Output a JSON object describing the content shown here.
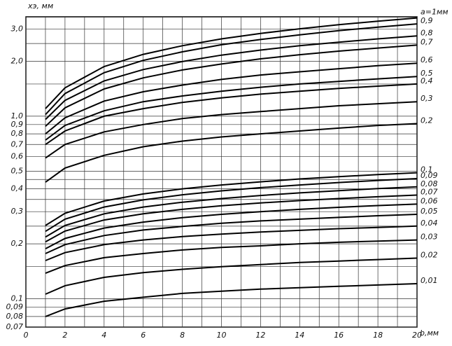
{
  "chart_data": {
    "type": "line",
    "log_y": true,
    "grid": true,
    "ylabel": "xэ, мм",
    "xlabel": "b,мм",
    "x": [
      1,
      2,
      4,
      6,
      8,
      10,
      12,
      14,
      16,
      18,
      20
    ],
    "xlim": [
      0,
      20
    ],
    "xticks": [
      0,
      2,
      4,
      6,
      8,
      10,
      12,
      14,
      16,
      18,
      20
    ],
    "xminor": [
      1,
      3,
      5,
      7,
      9,
      11,
      13,
      15,
      17,
      19
    ],
    "ylim": [
      0.07,
      3.5
    ],
    "yticks": [
      {
        "value": 3.0,
        "label": "3,0"
      },
      {
        "value": 2.0,
        "label": "2,0"
      },
      {
        "value": 1.0,
        "label": "1,0"
      },
      {
        "value": 0.9,
        "label": "0,9"
      },
      {
        "value": 0.8,
        "label": "0,8"
      },
      {
        "value": 0.7,
        "label": "0,7"
      },
      {
        "value": 0.6,
        "label": "0,6"
      },
      {
        "value": 0.5,
        "label": "0,5"
      },
      {
        "value": 0.4,
        "label": "0,4"
      },
      {
        "value": 0.3,
        "label": "0,3"
      },
      {
        "value": 0.2,
        "label": "0,2"
      },
      {
        "value": 0.1,
        "label": "0,1"
      },
      {
        "value": 0.09,
        "label": "0,09"
      },
      {
        "value": 0.08,
        "label": "0,08"
      },
      {
        "value": 0.07,
        "label": "0,07"
      }
    ],
    "yminor": [
      0.15,
      0.25,
      0.35,
      0.45,
      1.5,
      2.5
    ],
    "series": [
      {
        "name": "a=1мм",
        "color": "#000000",
        "values": [
          1.1,
          1.43,
          1.87,
          2.18,
          2.43,
          2.65,
          2.84,
          3.01,
          3.17,
          3.31,
          3.45
        ]
      },
      {
        "name": "0,9",
        "color": "#000000",
        "values": [
          1.02,
          1.33,
          1.73,
          2.02,
          2.25,
          2.46,
          2.63,
          2.79,
          2.94,
          3.07,
          3.2
        ]
      },
      {
        "name": "0,8",
        "color": "#000000",
        "values": [
          0.96,
          1.22,
          1.56,
          1.8,
          1.99,
          2.16,
          2.3,
          2.43,
          2.54,
          2.65,
          2.75
        ]
      },
      {
        "name": "0,7",
        "color": "#000000",
        "values": [
          0.88,
          1.11,
          1.41,
          1.62,
          1.79,
          1.93,
          2.06,
          2.17,
          2.27,
          2.36,
          2.45
        ]
      },
      {
        "name": "0,6",
        "color": "#000000",
        "values": [
          0.8,
          0.98,
          1.21,
          1.36,
          1.48,
          1.59,
          1.68,
          1.75,
          1.82,
          1.89,
          1.95
        ]
      },
      {
        "name": "0,5",
        "color": "#000000",
        "values": [
          0.74,
          0.89,
          1.07,
          1.2,
          1.29,
          1.37,
          1.44,
          1.5,
          1.55,
          1.6,
          1.65
        ]
      },
      {
        "name": "0,4",
        "color": "#000000",
        "values": [
          0.7,
          0.83,
          1.0,
          1.1,
          1.19,
          1.26,
          1.32,
          1.37,
          1.42,
          1.46,
          1.5
        ]
      },
      {
        "name": "0,3",
        "color": "#000000",
        "values": [
          0.59,
          0.7,
          0.82,
          0.9,
          0.97,
          1.02,
          1.06,
          1.1,
          1.14,
          1.17,
          1.2
        ]
      },
      {
        "name": "0,2",
        "color": "#000000",
        "values": [
          0.435,
          0.52,
          0.61,
          0.68,
          0.73,
          0.77,
          0.8,
          0.83,
          0.86,
          0.89,
          0.91
        ]
      },
      {
        "name": "0,1",
        "color": "#000000",
        "values": [
          0.252,
          0.294,
          0.343,
          0.375,
          0.4,
          0.42,
          0.437,
          0.453,
          0.466,
          0.479,
          0.49
        ]
      },
      {
        "name": "0,09",
        "color": "#000000",
        "values": [
          0.234,
          0.273,
          0.318,
          0.348,
          0.371,
          0.39,
          0.406,
          0.42,
          0.433,
          0.445,
          0.455
        ]
      },
      {
        "name": "0,08",
        "color": "#000000",
        "values": [
          0.218,
          0.252,
          0.292,
          0.318,
          0.338,
          0.354,
          0.368,
          0.38,
          0.391,
          0.401,
          0.41
        ]
      },
      {
        "name": "0,07",
        "color": "#000000",
        "values": [
          0.205,
          0.235,
          0.27,
          0.292,
          0.309,
          0.323,
          0.335,
          0.345,
          0.354,
          0.362,
          0.37
        ]
      },
      {
        "name": "0,06",
        "color": "#000000",
        "values": [
          0.188,
          0.214,
          0.244,
          0.263,
          0.278,
          0.29,
          0.3,
          0.309,
          0.317,
          0.324,
          0.33
        ]
      },
      {
        "name": "0,05",
        "color": "#000000",
        "values": [
          0.177,
          0.198,
          0.222,
          0.238,
          0.249,
          0.259,
          0.267,
          0.273,
          0.279,
          0.285,
          0.29
        ]
      },
      {
        "name": "0,04",
        "color": "#000000",
        "values": [
          0.162,
          0.179,
          0.198,
          0.21,
          0.219,
          0.226,
          0.232,
          0.237,
          0.242,
          0.246,
          0.25
        ]
      },
      {
        "name": "0,03",
        "color": "#000000",
        "values": [
          0.138,
          0.152,
          0.168,
          0.177,
          0.185,
          0.191,
          0.195,
          0.2,
          0.204,
          0.207,
          0.21
        ]
      },
      {
        "name": "0,02",
        "color": "#000000",
        "values": [
          0.106,
          0.118,
          0.131,
          0.139,
          0.145,
          0.15,
          0.154,
          0.158,
          0.161,
          0.164,
          0.167
        ]
      },
      {
        "name": "0,01",
        "color": "#000000",
        "values": [
          0.08,
          0.088,
          0.097,
          0.102,
          0.107,
          0.11,
          0.113,
          0.115,
          0.117,
          0.119,
          0.121
        ]
      }
    ]
  }
}
